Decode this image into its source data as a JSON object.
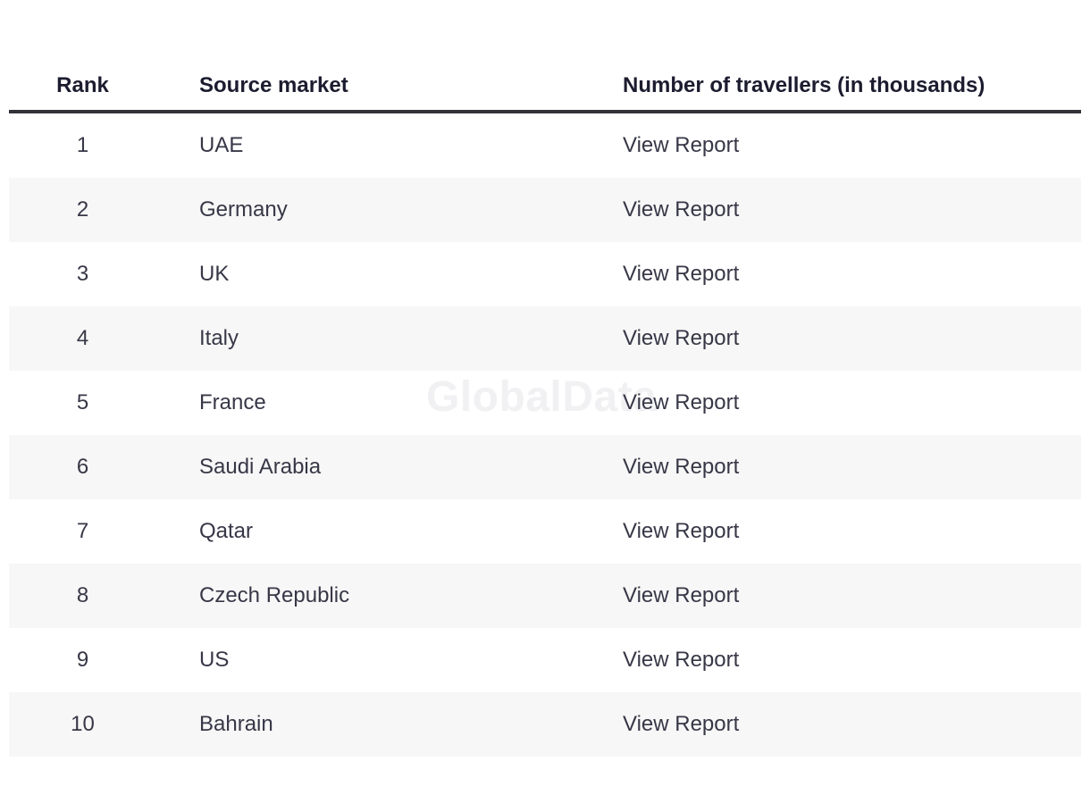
{
  "watermark": "GlobalData",
  "table": {
    "columns": {
      "rank": "Rank",
      "market": "Source market",
      "travellers": "Number of travellers (in thousands)"
    },
    "rows": [
      {
        "rank": "1",
        "market": "UAE",
        "action": "View Report"
      },
      {
        "rank": "2",
        "market": "Germany",
        "action": "View Report"
      },
      {
        "rank": "3",
        "market": "UK",
        "action": "View Report"
      },
      {
        "rank": "4",
        "market": "Italy",
        "action": "View Report"
      },
      {
        "rank": "5",
        "market": "France",
        "action": "View Report"
      },
      {
        "rank": "6",
        "market": "Saudi Arabia",
        "action": "View Report"
      },
      {
        "rank": "7",
        "market": "Qatar",
        "action": "View Report"
      },
      {
        "rank": "8",
        "market": "Czech Republic",
        "action": "View Report"
      },
      {
        "rank": "9",
        "market": "US",
        "action": "View Report"
      },
      {
        "rank": "10",
        "market": "Bahrain",
        "action": "View Report"
      }
    ]
  },
  "colors": {
    "header_text": "#1c1c30",
    "body_text": "#373747",
    "header_rule": "#32323a",
    "zebra_row": "#f7f7f7",
    "watermark": "#f1f0f2",
    "background": "#ffffff"
  }
}
